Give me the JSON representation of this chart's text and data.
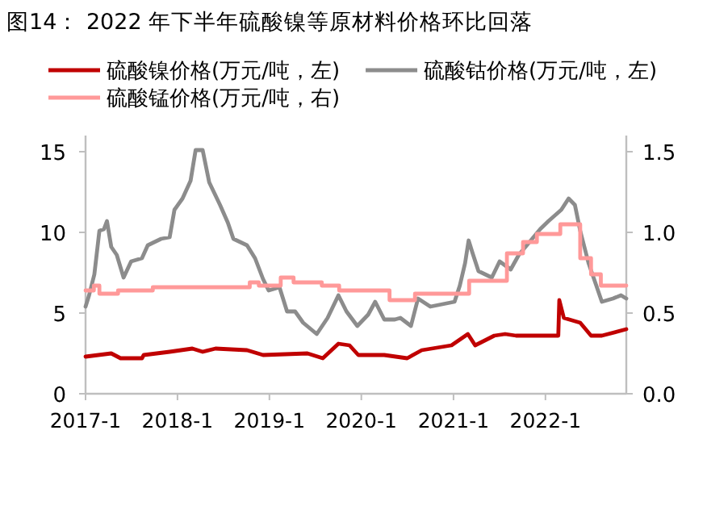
{
  "chart_data": {
    "type": "line",
    "title": "图14：  2022 年下半年硫酸镍等原材料价格环比回落",
    "legend": "top",
    "marker": "none",
    "line_style": "solid",
    "grid": false,
    "xlim": [
      "2017-01-01",
      "2022-11-18"
    ],
    "xticks": [
      {
        "value": "2017-01",
        "label": "2017-1"
      },
      {
        "value": "2018-01",
        "label": "2018-1"
      },
      {
        "value": "2019-01",
        "label": "2019-1"
      },
      {
        "value": "2020-01",
        "label": "2020-1"
      },
      {
        "value": "2021-01",
        "label": "2021-1"
      },
      {
        "value": "2022-01",
        "label": "2022-1"
      }
    ],
    "ylim": [
      0,
      16
    ],
    "yticks": [
      0,
      5,
      10,
      15
    ],
    "y2lim": [
      0,
      1.6
    ],
    "y2ticks": [
      {
        "value": 0,
        "label": "0.0"
      },
      {
        "value": 0.5,
        "label": "0.5"
      },
      {
        "value": 1,
        "label": "1.0"
      },
      {
        "value": 1.5,
        "label": "1.5"
      }
    ],
    "series": [
      {
        "name": "硫酸镍价格(万元/吨，左)",
        "color": "#c00000",
        "x": [
          "2017-01-01",
          "2017-04-13",
          "2017-05-20",
          "2017-08-13",
          "2017-08-20",
          "2017-12-01",
          "2018-03-01",
          "2018-04-11",
          "2018-06-01",
          "2018-10-04",
          "2018-12-07",
          "2019-06-01",
          "2019-08-01",
          "2019-10-02",
          "2019-11-15",
          "2019-12-20",
          "2020-04-01",
          "2020-07-01",
          "2020-08-28",
          "2020-12-24",
          "2021-02-27",
          "2021-03-28",
          "2021-06-12",
          "2021-07-25",
          "2021-09-06",
          "2022-02-21",
          "2022-02-25",
          "2022-03-15",
          "2022-05-19",
          "2022-07-01",
          "2022-08-13",
          "2022-11-18"
        ],
        "values": [
          2.3,
          2.5,
          2.2,
          2.2,
          2.4,
          2.6,
          2.8,
          2.6,
          2.8,
          2.7,
          2.4,
          2.5,
          2.2,
          3.1,
          3.0,
          2.4,
          2.4,
          2.2,
          2.7,
          3.0,
          3.7,
          3.0,
          3.6,
          3.7,
          3.6,
          3.6,
          5.8,
          4.7,
          4.4,
          3.6,
          3.6,
          4.0
        ]
      },
      {
        "name": "硫酸钴价格(万元/吨，左)",
        "color": "#8c8c8c",
        "x": [
          "2017-01-01",
          "2017-01-15",
          "2017-02-05",
          "2017-02-25",
          "2017-03-15",
          "2017-03-27",
          "2017-04-13",
          "2017-05-05",
          "2017-06-01",
          "2017-07-01",
          "2017-08-13",
          "2017-09-05",
          "2017-10-28",
          "2017-12-01",
          "2017-12-20",
          "2018-01-21",
          "2018-02-22",
          "2018-03-14",
          "2018-04-11",
          "2018-05-07",
          "2018-06-19",
          "2018-07-20",
          "2018-08-11",
          "2018-10-04",
          "2018-11-05",
          "2018-12-07",
          "2018-12-29",
          "2019-02-10",
          "2019-03-12",
          "2019-04-13",
          "2019-05-15",
          "2019-07-08",
          "2019-08-20",
          "2019-10-02",
          "2019-11-03",
          "2019-12-16",
          "2020-01-28",
          "2020-02-25",
          "2020-04-01",
          "2020-05-13",
          "2020-06-04",
          "2020-07-16",
          "2020-08-13",
          "2020-10-01",
          "2021-01-05",
          "2021-01-26",
          "2021-02-16",
          "2021-03-02",
          "2021-03-18",
          "2021-04-10",
          "2021-06-02",
          "2021-07-03",
          "2021-08-16",
          "2021-09-17",
          "2021-10-19",
          "2021-12-11",
          "2022-01-13",
          "2022-03-05",
          "2022-04-03",
          "2022-04-28",
          "2022-05-19",
          "2022-06-21",
          "2022-07-22",
          "2022-08-13",
          "2022-09-26",
          "2022-10-28",
          "2022-11-18"
        ],
        "values": [
          5.4,
          6.1,
          7.4,
          10.1,
          10.2,
          10.7,
          9.1,
          8.6,
          7.2,
          8.2,
          8.4,
          9.2,
          9.6,
          9.7,
          11.4,
          12.1,
          13.2,
          15.1,
          15.1,
          13.1,
          11.7,
          10.6,
          9.6,
          9.2,
          8.4,
          7.1,
          6.4,
          6.6,
          5.1,
          5.1,
          4.4,
          3.7,
          4.7,
          6.1,
          5.1,
          4.2,
          4.9,
          5.7,
          4.6,
          4.6,
          4.7,
          4.2,
          5.9,
          5.4,
          5.7,
          6.7,
          8.1,
          9.5,
          8.7,
          7.6,
          7.2,
          8.2,
          7.7,
          8.6,
          9.2,
          10.2,
          10.7,
          11.4,
          12.1,
          11.7,
          10.1,
          8.1,
          6.7,
          5.7,
          5.9,
          6.1,
          5.9
        ]
      },
      {
        "name": "硫酸锰价格(万元/吨，右)",
        "color": "#ff9999",
        "type": "step",
        "axis": "y2",
        "x": [
          "2017-01-01",
          "2017-02-03",
          "2017-02-25",
          "2017-05-10",
          "2017-09-25",
          "2018-10-15",
          "2018-11-20",
          "2019-02-15",
          "2019-04-07",
          "2019-07-28",
          "2019-10-05",
          "2020-04-22",
          "2020-08-01",
          "2021-03-04",
          "2021-08-01",
          "2021-10-04",
          "2021-11-28",
          "2022-03-01",
          "2022-05-19",
          "2022-07-01",
          "2022-08-09",
          "2022-11-18"
        ],
        "values": [
          0.64,
          0.67,
          0.62,
          0.64,
          0.66,
          0.69,
          0.67,
          0.72,
          0.69,
          0.67,
          0.64,
          0.58,
          0.62,
          0.7,
          0.87,
          0.94,
          0.99,
          1.05,
          0.84,
          0.74,
          0.67,
          0.67
        ]
      }
    ]
  }
}
